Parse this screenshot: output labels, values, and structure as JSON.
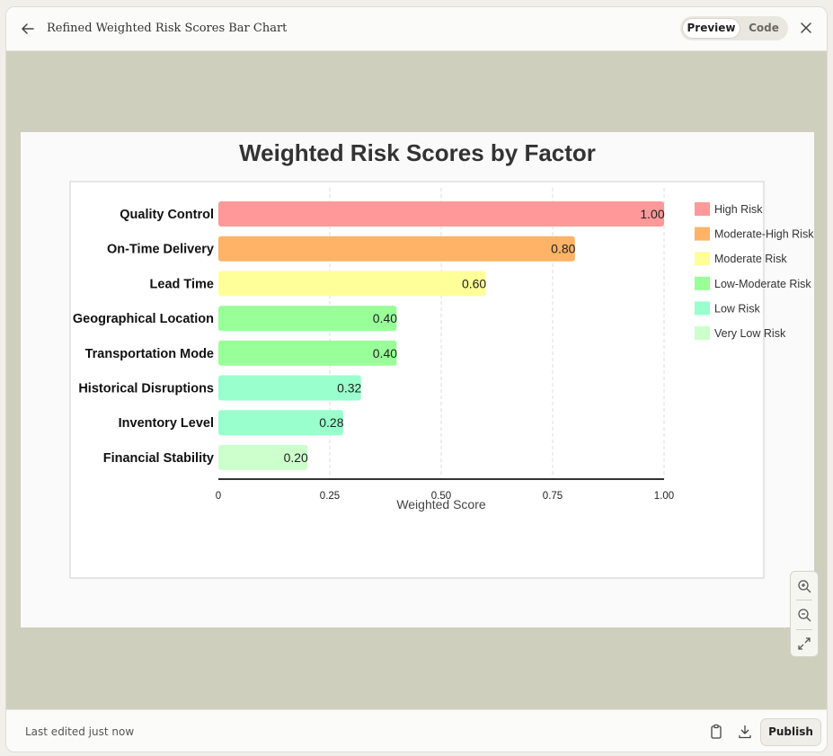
{
  "header": {
    "title": "Refined Weighted Risk Scores Bar Chart",
    "toggle": {
      "preview": "Preview",
      "code": "Code"
    }
  },
  "footer": {
    "status": "Last edited just now",
    "publish": "Publish"
  },
  "colors": {
    "high": "#ff9999",
    "moderate_high": "#ffb366",
    "moderate": "#ffff99",
    "low_moderate": "#99ff99",
    "low": "#99ffcc",
    "very_low": "#ccffcc"
  },
  "chart_data": {
    "type": "bar",
    "orientation": "horizontal",
    "title": "Weighted Risk Scores by Factor",
    "xlabel": "Weighted Score",
    "ylabel": "",
    "xlim": [
      0,
      1
    ],
    "grid": true,
    "categories": [
      "Quality Control",
      "On-Time Delivery",
      "Lead Time",
      "Geographical Location",
      "Transportation Mode",
      "Historical Disruptions",
      "Inventory Level",
      "Financial Stability"
    ],
    "values": [
      1.0,
      0.8,
      0.6,
      0.4,
      0.4,
      0.32,
      0.28,
      0.2
    ],
    "value_labels": [
      "1.00",
      "0.80",
      "0.60",
      "0.40",
      "0.40",
      "0.32",
      "0.28",
      "0.20"
    ],
    "bar_risk": [
      "high",
      "moderate_high",
      "moderate",
      "low_moderate",
      "low_moderate",
      "low",
      "low",
      "very_low"
    ],
    "xticks": [
      "0",
      "0.25",
      "0.50",
      "0.75",
      "1.00"
    ],
    "xtick_values": [
      0,
      0.25,
      0.5,
      0.75,
      1.0
    ],
    "legend": {
      "position": "right",
      "entries": [
        {
          "label": "High Risk",
          "key": "high"
        },
        {
          "label": "Moderate-High Risk",
          "key": "moderate_high"
        },
        {
          "label": "Moderate Risk",
          "key": "moderate"
        },
        {
          "label": "Low-Moderate Risk",
          "key": "low_moderate"
        },
        {
          "label": "Low Risk",
          "key": "low"
        },
        {
          "label": "Very Low Risk",
          "key": "very_low"
        }
      ]
    }
  }
}
